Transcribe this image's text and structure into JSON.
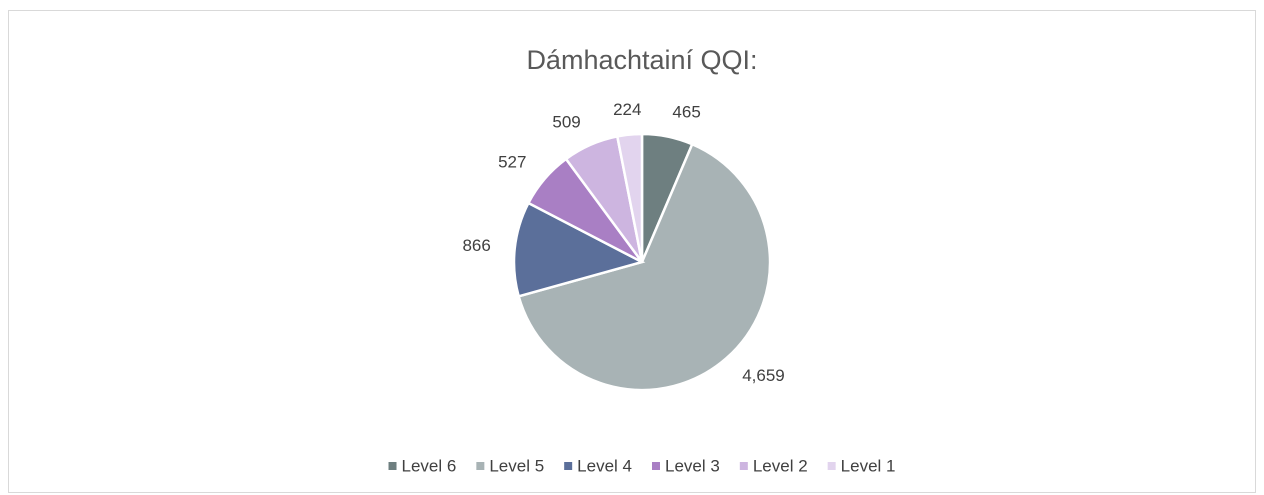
{
  "chart_data": {
    "type": "pie",
    "title": "Dámhachtainí QQI:",
    "categories": [
      "Level 6",
      "Level 5",
      "Level 4",
      "Level 3",
      "Level 2",
      "Level 1"
    ],
    "values": [
      465,
      4659,
      866,
      527,
      509,
      224
    ],
    "value_labels": [
      "465",
      "4,659",
      "866",
      "527",
      "509",
      "224"
    ],
    "colors": [
      "#6e7f80",
      "#a8b3b5",
      "#5b6f9a",
      "#a97fc4",
      "#cdb5e0",
      "#e2d4ee"
    ],
    "legend": "bottom"
  }
}
